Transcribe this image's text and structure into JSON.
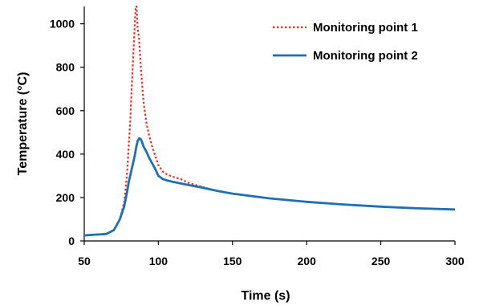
{
  "chart_data": {
    "type": "line",
    "xlabel": "Time (s)",
    "ylabel": "Temperature (°C)",
    "xlim": [
      50,
      300
    ],
    "ylim": [
      0,
      1080
    ],
    "xticks": [
      50,
      100,
      150,
      200,
      250,
      300
    ],
    "yticks": [
      0,
      200,
      400,
      600,
      800,
      1000
    ],
    "legend_position": "top-right",
    "series": [
      {
        "name": "Monitoring point 1",
        "color": "#e8312b",
        "style": "dotted",
        "x": [
          50,
          55,
          60,
          65,
          70,
          74,
          77,
          79,
          81,
          82,
          83,
          84,
          84.7,
          85.3,
          86,
          87,
          88,
          89,
          90,
          92,
          94,
          96,
          98,
          100,
          103,
          106,
          110,
          115,
          120,
          130,
          140,
          150,
          175,
          200,
          225,
          250,
          275,
          300
        ],
        "y": [
          25,
          28,
          30,
          32,
          50,
          100,
          180,
          320,
          550,
          700,
          850,
          980,
          1080,
          1080,
          980,
          930,
          820,
          720,
          640,
          540,
          480,
          430,
          390,
          350,
          320,
          305,
          295,
          285,
          268,
          248,
          230,
          218,
          196,
          180,
          168,
          158,
          150,
          145
        ]
      },
      {
        "name": "Monitoring point 2",
        "color": "#1f6fb5",
        "style": "solid",
        "x": [
          50,
          55,
          60,
          65,
          70,
          74,
          77,
          79,
          80,
          82,
          84,
          85,
          86,
          87,
          88,
          89,
          90,
          92,
          94,
          96,
          98,
          100,
          103,
          106,
          110,
          115,
          120,
          130,
          140,
          150,
          175,
          200,
          225,
          250,
          275,
          300
        ],
        "y": [
          25,
          28,
          30,
          32,
          50,
          100,
          160,
          230,
          270,
          330,
          390,
          430,
          460,
          472,
          470,
          455,
          435,
          410,
          380,
          355,
          330,
          300,
          285,
          278,
          272,
          265,
          258,
          245,
          230,
          218,
          196,
          180,
          168,
          158,
          150,
          145
        ]
      }
    ]
  }
}
